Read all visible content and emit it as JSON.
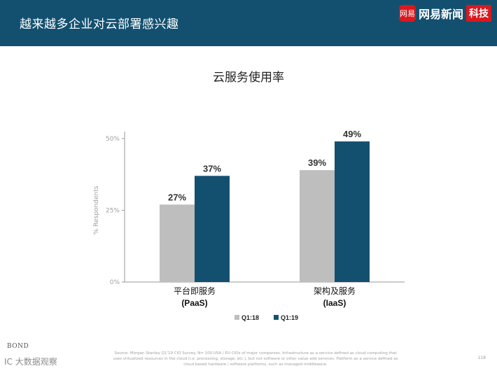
{
  "header": {
    "title": "越来越多企业对云部署感兴趣",
    "logo_mark": "网易",
    "logo_text": "网易新闻",
    "logo_badge": "科技"
  },
  "colors": {
    "header_bg": "#13506f",
    "series_q118": "#bebebe",
    "series_q119": "#13506f"
  },
  "chart_data": {
    "type": "bar",
    "title": "云服务使用率",
    "ylabel": "% Respondents",
    "ylim": [
      0,
      50
    ],
    "yticks": [
      "0%",
      "25%",
      "50%"
    ],
    "ytick_values": [
      0,
      25,
      50
    ],
    "categories": [
      {
        "line1": "平台即服务",
        "line2": "(PaaS)"
      },
      {
        "line1": "架构及服务",
        "line2": "(IaaS)"
      }
    ],
    "series": [
      {
        "name": "Q1:18",
        "values": [
          27,
          39
        ],
        "labels": [
          "27%",
          "39%"
        ],
        "color": "#bebebe"
      },
      {
        "name": "Q1:19",
        "values": [
          37,
          49
        ],
        "labels": [
          "37%",
          "49%"
        ],
        "color": "#13506f"
      }
    ],
    "grid": false,
    "legend": "bottom"
  },
  "footer": {
    "source": "Source: Morgan Stanley Q1'19 CIO Survey. N= 100 USA / EU CIOs of major companies. Infrastructure as a service defined as cloud computing that uses virtualized resources in the cloud (i.e. processing, storage, etc.), but not software or other value add services. Platform as a service defined as cloud based hardware / software platforms, such as managed middleware.",
    "page_number": "118",
    "bond": "BOND",
    "watermark": "IC 大数据观察"
  }
}
